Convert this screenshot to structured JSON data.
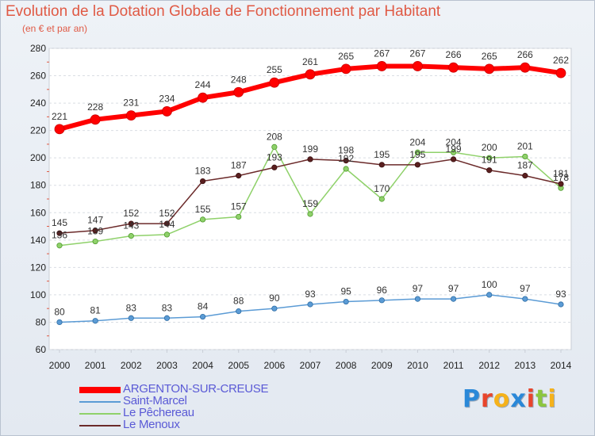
{
  "header": {
    "title": "Evolution de la Dotation Globale de Fonctionnement par Habitant",
    "subtitle": "(en € et par an)"
  },
  "chart_data": {
    "type": "line",
    "title": "Evolution de la Dotation Globale de Fonctionnement par Habitant",
    "subtitle": "(en € et par an)",
    "xlabel": "",
    "ylabel": "",
    "x": [
      2000,
      2001,
      2002,
      2003,
      2004,
      2005,
      2006,
      2007,
      2008,
      2009,
      2010,
      2011,
      2012,
      2013,
      2014
    ],
    "ylim": [
      60,
      280
    ],
    "yticks": [
      60,
      80,
      100,
      120,
      140,
      160,
      180,
      200,
      220,
      240,
      260,
      280
    ],
    "grid": true,
    "legend_position": "bottom-left",
    "series": [
      {
        "name": "ARGENTON-SUR-CREUSE",
        "color": "#ff0000",
        "values": [
          221,
          228,
          231,
          234,
          244,
          248,
          255,
          261,
          265,
          267,
          267,
          266,
          265,
          266,
          262
        ]
      },
      {
        "name": "Saint-Marcel",
        "color": "#5b9bd5",
        "values": [
          80,
          81,
          83,
          83,
          84,
          88,
          90,
          93,
          95,
          96,
          97,
          97,
          100,
          97,
          93
        ]
      },
      {
        "name": "Le Pêchereau",
        "color": "#8fd16a",
        "values": [
          136,
          139,
          143,
          144,
          155,
          157,
          208,
          159,
          192,
          170,
          204,
          204,
          200,
          201,
          178
        ]
      },
      {
        "name": "Le Menoux",
        "color": "#6b2a2a",
        "values": [
          145,
          147,
          152,
          152,
          183,
          187,
          193,
          199,
          198,
          195,
          195,
          199,
          191,
          187,
          181
        ]
      }
    ]
  },
  "logo": {
    "parts": [
      "P",
      "r",
      "o",
      "x",
      "i",
      "t",
      "i"
    ],
    "colors": [
      "#2a88d8",
      "#e8452c",
      "#f5b21b",
      "#2a88d8",
      "#e8452c",
      "#8cc63f",
      "#f5b21b"
    ]
  }
}
